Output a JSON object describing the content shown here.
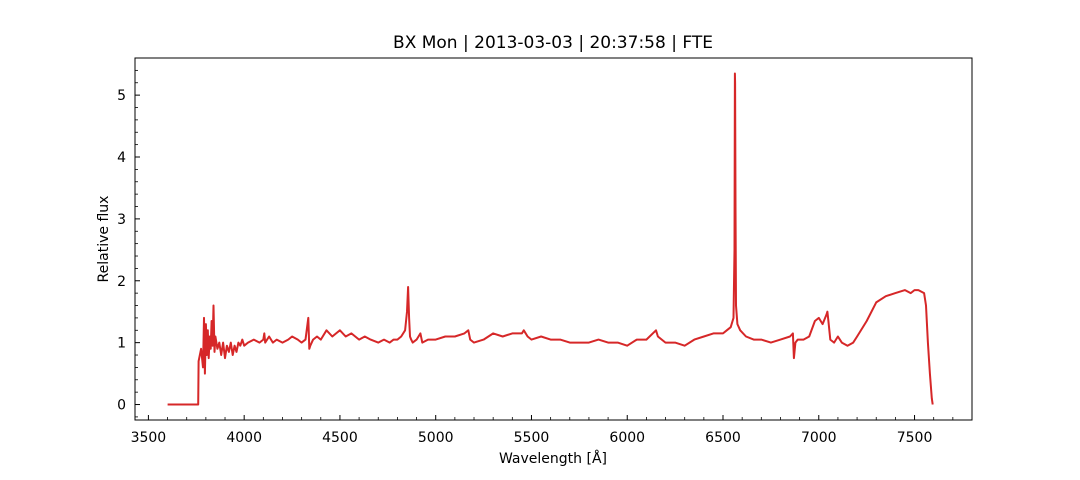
{
  "chart_data": {
    "type": "line",
    "title": "BX Mon | 2013-03-03 | 20:37:58 | FTE",
    "xlabel": "Wavelength [Å]",
    "ylabel": "Relative flux",
    "xlim": [
      3430,
      7800
    ],
    "ylim": [
      -0.25,
      5.6
    ],
    "xticks": [
      3500,
      4000,
      4500,
      5000,
      5500,
      6000,
      6500,
      7000,
      7500
    ],
    "yticks": [
      0,
      1,
      2,
      3,
      4,
      5
    ],
    "grid": false,
    "color": "#d62728",
    "series": [
      {
        "x": [
          3600,
          3760,
          3762,
          3775,
          3785,
          3790,
          3795,
          3800,
          3805,
          3810,
          3815,
          3820,
          3825,
          3830,
          3835,
          3840,
          3845,
          3850,
          3860,
          3870,
          3880,
          3890,
          3900,
          3910,
          3920,
          3930,
          3940,
          3950,
          3960,
          3970,
          3980,
          3990,
          4000,
          4020,
          4050,
          4080,
          4100,
          4105,
          4110,
          4130,
          4150,
          4170,
          4200,
          4230,
          4250,
          4280,
          4300,
          4320,
          4335,
          4340,
          4345,
          4360,
          4380,
          4400,
          4430,
          4460,
          4480,
          4500,
          4530,
          4560,
          4600,
          4630,
          4660,
          4700,
          4730,
          4760,
          4780,
          4800,
          4820,
          4840,
          4850,
          4856,
          4861,
          4866,
          4872,
          4880,
          4900,
          4920,
          4930,
          4960,
          5000,
          5050,
          5100,
          5150,
          5170,
          5180,
          5200,
          5250,
          5300,
          5350,
          5400,
          5450,
          5460,
          5480,
          5500,
          5550,
          5600,
          5650,
          5700,
          5750,
          5800,
          5850,
          5900,
          5950,
          6000,
          6050,
          6100,
          6150,
          6160,
          6200,
          6250,
          6300,
          6350,
          6400,
          6450,
          6500,
          6520,
          6540,
          6555,
          6560,
          6562,
          6563,
          6565,
          6568,
          6575,
          6590,
          6620,
          6660,
          6700,
          6750,
          6800,
          6850,
          6865,
          6870,
          6878,
          6890,
          6920,
          6950,
          6980,
          7000,
          7020,
          7040,
          7045,
          7050,
          7060,
          7080,
          7100,
          7120,
          7150,
          7180,
          7200,
          7250,
          7300,
          7350,
          7400,
          7450,
          7480,
          7500,
          7520,
          7550,
          7560,
          7570,
          7580,
          7590,
          7595
        ],
        "y": [
          0,
          0,
          0.7,
          0.9,
          0.6,
          1.4,
          0.5,
          1.3,
          0.8,
          1.2,
          0.75,
          1.1,
          0.9,
          1.35,
          0.95,
          1.6,
          0.85,
          1.1,
          0.9,
          1.0,
          0.8,
          1.0,
          0.75,
          0.95,
          0.85,
          1.0,
          0.8,
          0.95,
          0.85,
          1.0,
          0.95,
          1.05,
          0.95,
          1.0,
          1.05,
          1.0,
          1.05,
          1.15,
          1.0,
          1.1,
          1.0,
          1.05,
          1.0,
          1.05,
          1.1,
          1.05,
          1.0,
          1.05,
          1.4,
          0.9,
          0.95,
          1.05,
          1.1,
          1.05,
          1.2,
          1.1,
          1.15,
          1.2,
          1.1,
          1.15,
          1.05,
          1.1,
          1.05,
          1.0,
          1.05,
          1.0,
          1.05,
          1.05,
          1.1,
          1.2,
          1.5,
          1.9,
          1.4,
          1.1,
          1.05,
          1.0,
          1.05,
          1.15,
          1.0,
          1.05,
          1.05,
          1.1,
          1.1,
          1.15,
          1.2,
          1.05,
          1.0,
          1.05,
          1.15,
          1.1,
          1.15,
          1.15,
          1.2,
          1.1,
          1.05,
          1.1,
          1.05,
          1.05,
          1.0,
          1.0,
          1.0,
          1.05,
          1.0,
          1.0,
          0.95,
          1.05,
          1.05,
          1.2,
          1.1,
          1.0,
          1.0,
          0.95,
          1.05,
          1.1,
          1.15,
          1.15,
          1.2,
          1.25,
          1.4,
          2.5,
          5.35,
          5.2,
          3.2,
          1.6,
          1.3,
          1.2,
          1.1,
          1.05,
          1.05,
          1.0,
          1.05,
          1.1,
          1.15,
          0.75,
          1.0,
          1.05,
          1.05,
          1.1,
          1.35,
          1.4,
          1.3,
          1.45,
          1.5,
          1.35,
          1.05,
          1.0,
          1.1,
          1.0,
          0.95,
          1.0,
          1.1,
          1.35,
          1.65,
          1.75,
          1.8,
          1.85,
          1.8,
          1.85,
          1.85,
          1.8,
          1.6,
          1.0,
          0.5,
          0.1,
          0
        ]
      }
    ]
  }
}
